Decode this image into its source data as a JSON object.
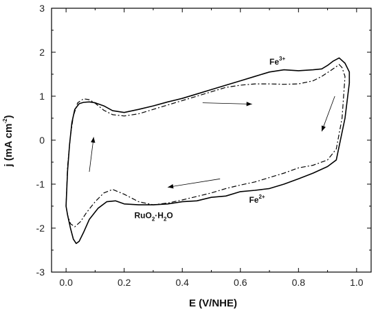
{
  "chart_data": {
    "type": "line",
    "title": "",
    "xlabel": "E (V/NHE)",
    "ylabel": "j (mA cm",
    "ylabel_exponent": "-2",
    "ylabel_close": ")",
    "xlim": [
      -0.05,
      1.05
    ],
    "ylim": [
      -3,
      3
    ],
    "x_ticks": [
      "0.0",
      "0.2",
      "0.4",
      "0.6",
      "0.8",
      "1.0"
    ],
    "y_ticks": [
      "3",
      "2",
      "1",
      "0",
      "-1",
      "-2",
      "-3"
    ],
    "grid": false,
    "series": [
      {
        "style": "solid",
        "x": [
          0.94,
          0.96,
          0.975,
          0.975,
          0.96,
          0.93,
          0.9,
          0.85,
          0.8,
          0.75,
          0.7,
          0.65,
          0.6,
          0.55,
          0.5,
          0.45,
          0.4,
          0.35,
          0.3,
          0.25,
          0.2,
          0.17,
          0.14,
          0.11,
          0.08,
          0.06,
          0.045,
          0.035,
          0.025,
          0.015,
          0.005,
          0.0,
          0.005,
          0.012,
          0.02,
          0.03,
          0.045,
          0.06,
          0.08,
          0.1,
          0.13,
          0.16,
          0.2,
          0.25,
          0.3,
          0.35,
          0.4,
          0.45,
          0.5,
          0.55,
          0.6,
          0.65,
          0.7,
          0.75,
          0.8,
          0.85,
          0.88,
          0.9,
          0.92,
          0.94
        ],
        "y": [
          1.87,
          1.75,
          1.55,
          1.3,
          0.5,
          -0.45,
          -0.6,
          -0.75,
          -0.88,
          -1.0,
          -1.1,
          -1.14,
          -1.17,
          -1.27,
          -1.3,
          -1.38,
          -1.4,
          -1.45,
          -1.47,
          -1.47,
          -1.45,
          -1.38,
          -1.4,
          -1.55,
          -1.8,
          -2.1,
          -2.3,
          -2.35,
          -2.25,
          -2.0,
          -1.7,
          -1.5,
          -0.7,
          -0.1,
          0.4,
          0.7,
          0.83,
          0.86,
          0.87,
          0.85,
          0.78,
          0.67,
          0.63,
          0.7,
          0.78,
          0.87,
          0.95,
          1.05,
          1.15,
          1.25,
          1.35,
          1.45,
          1.55,
          1.6,
          1.58,
          1.6,
          1.62,
          1.7,
          1.8,
          1.87
        ]
      },
      {
        "style": "dashdot",
        "x": [
          0.94,
          0.95,
          0.96,
          0.95,
          0.93,
          0.9,
          0.85,
          0.8,
          0.75,
          0.7,
          0.65,
          0.6,
          0.55,
          0.5,
          0.45,
          0.4,
          0.35,
          0.3,
          0.25,
          0.2,
          0.16,
          0.13,
          0.1,
          0.07,
          0.05,
          0.03,
          0.015,
          0.005,
          0.0,
          0.005,
          0.015,
          0.025,
          0.04,
          0.06,
          0.08,
          0.1,
          0.13,
          0.16,
          0.2,
          0.25,
          0.3,
          0.35,
          0.4,
          0.45,
          0.5,
          0.55,
          0.6,
          0.65,
          0.7,
          0.75,
          0.8,
          0.85,
          0.88,
          0.91,
          0.94
        ],
        "y": [
          1.72,
          1.65,
          1.45,
          0.5,
          -0.2,
          -0.45,
          -0.57,
          -0.63,
          -0.75,
          -0.85,
          -0.95,
          -1.02,
          -1.1,
          -1.2,
          -1.28,
          -1.36,
          -1.43,
          -1.47,
          -1.4,
          -1.23,
          -1.12,
          -1.2,
          -1.4,
          -1.65,
          -1.85,
          -1.97,
          -1.9,
          -1.7,
          -1.5,
          -0.6,
          0.1,
          0.55,
          0.85,
          0.94,
          0.92,
          0.84,
          0.68,
          0.58,
          0.55,
          0.6,
          0.7,
          0.8,
          0.9,
          1.0,
          1.1,
          1.2,
          1.25,
          1.28,
          1.28,
          1.27,
          1.28,
          1.35,
          1.45,
          1.58,
          1.72
        ]
      }
    ],
    "annotations": [
      {
        "base": "Fe",
        "sup": "3+",
        "x": 0.7,
        "y": 1.72
      },
      {
        "base": "Fe",
        "sup": "2+",
        "x": 0.63,
        "y": -1.42
      },
      {
        "base": "RuO",
        "sub": "2",
        "rest": "·H",
        "sub2": "2",
        "tail": "O",
        "x": 0.235,
        "y": -1.77
      }
    ],
    "arrows": [
      {
        "from": [
          0.47,
          0.85
        ],
        "to": [
          0.64,
          0.82
        ]
      },
      {
        "from": [
          0.925,
          1.0
        ],
        "to": [
          0.88,
          0.2
        ]
      },
      {
        "from": [
          0.08,
          -0.72
        ],
        "to": [
          0.095,
          0.07
        ]
      },
      {
        "from": [
          0.53,
          -0.88
        ],
        "to": [
          0.35,
          -1.07
        ]
      }
    ]
  }
}
